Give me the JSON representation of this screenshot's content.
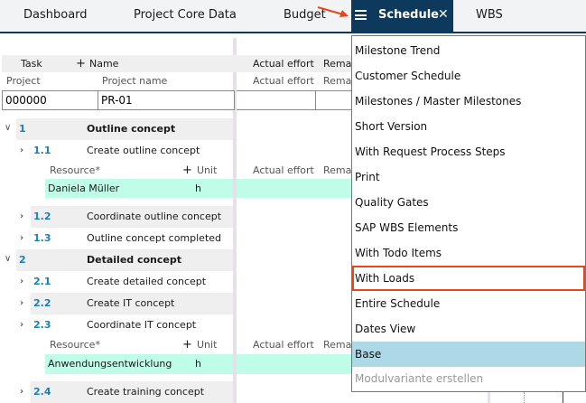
{
  "tabs": [
    {
      "label": "Dashboard"
    },
    {
      "label": "Project Core Data"
    },
    {
      "label": "Budget"
    },
    {
      "label": "Schedule",
      "active": true
    },
    {
      "label": "WBS"
    }
  ],
  "header": {
    "task": "Task",
    "plus": "+",
    "name": "Name",
    "actual_effort": "Actual effort",
    "remaining": "Remai"
  },
  "project_header": {
    "project": "Project",
    "project_name": "Project name",
    "actual_effort": "Actual effort",
    "remaining": "Remai"
  },
  "project": {
    "number": "000000",
    "name": "PR-01"
  },
  "rows": [
    {
      "num": "1",
      "name": "Outline concept",
      "bold": true
    },
    {
      "num": "1.1",
      "name": "Create outline concept"
    },
    {
      "num": "1.2",
      "name": "Coordinate outline concept"
    },
    {
      "num": "1.3",
      "name": "Outline concept completed"
    },
    {
      "num": "2",
      "name": "Detailed concept",
      "bold": true
    },
    {
      "num": "2.1",
      "name": "Create detailed concept"
    },
    {
      "num": "2.2",
      "name": "Create IT concept"
    },
    {
      "num": "2.3",
      "name": "Coordinate IT concept"
    },
    {
      "num": "2.4",
      "name": "Create training concept"
    }
  ],
  "resource_header": {
    "resource": "Resource*",
    "plus": "+",
    "unit": "Unit",
    "actual_effort": "Actual effort",
    "remaining": "Remai"
  },
  "resources": [
    {
      "name": "Daniela Müller",
      "unit": "h"
    },
    {
      "name": "Anwendungsentwicklung",
      "unit": "h"
    }
  ],
  "menu": {
    "items": [
      "Milestone Trend",
      "Customer Schedule",
      "Milestones / Master Milestones",
      "Short Version",
      "With Request Process Steps",
      "Print",
      "Quality Gates",
      "SAP WBS Elements",
      "With Todo Items",
      "With Loads",
      "Entire Schedule",
      "Dates View",
      "Base",
      "Modulvariante erstellen"
    ],
    "highlighted": "With Loads",
    "selected": "Base",
    "disabled": "Modulvariante erstellen"
  },
  "colors": {
    "tab_active": "#0d3a5c",
    "highlight": "#e8471c",
    "selected": "#add8e6",
    "resource_row": "#bffde8",
    "task_number": "#1a7fb5"
  }
}
